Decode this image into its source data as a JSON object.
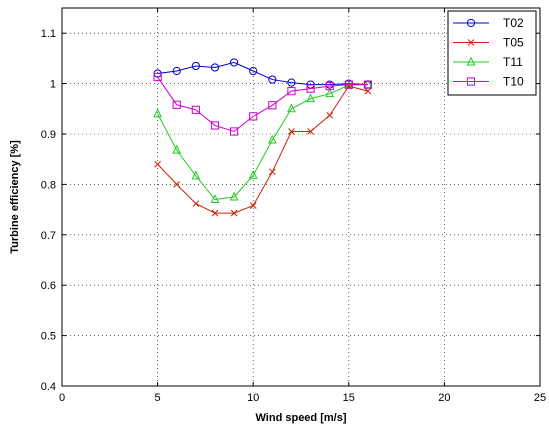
{
  "chart_data": {
    "type": "line",
    "title": "",
    "xlabel": "Wind speed  [m/s]",
    "ylabel": "Turbine efficiency  [%]",
    "xlim": [
      0,
      25
    ],
    "ylim": [
      0.4,
      1.15
    ],
    "xticks": [
      0,
      5,
      10,
      15,
      20,
      25
    ],
    "yticks": [
      0.4,
      0.5,
      0.6,
      0.7,
      0.8,
      0.9,
      1,
      1.1
    ],
    "xtick_labels": [
      "0",
      "5",
      "10",
      "15",
      "20",
      "25"
    ],
    "ytick_labels": [
      "0.4",
      "0.5",
      "0.6",
      "0.7",
      "0.8",
      "0.9",
      "1",
      "1.1"
    ],
    "grid": true,
    "legend_position": "top-right",
    "x": [
      5,
      6,
      7,
      8,
      9,
      10,
      11,
      12,
      13,
      14,
      15,
      16
    ],
    "series": [
      {
        "name": "T02",
        "color": "#0000cc",
        "marker": "circle",
        "values": [
          1.02,
          1.025,
          1.035,
          1.032,
          1.042,
          1.025,
          1.008,
          1.002,
          0.998,
          0.998,
          1.0,
          0.998
        ]
      },
      {
        "name": "T05",
        "color": "#cc2200",
        "marker": "x",
        "values": [
          0.84,
          0.8,
          0.762,
          0.743,
          0.743,
          0.758,
          0.825,
          0.905,
          0.905,
          0.937,
          0.995,
          0.985
        ]
      },
      {
        "name": "T11",
        "color": "#22cc22",
        "marker": "triangle",
        "values": [
          0.94,
          0.868,
          0.817,
          0.77,
          0.775,
          0.818,
          0.888,
          0.95,
          0.97,
          0.98,
          0.997,
          0.998
        ]
      },
      {
        "name": "T10",
        "color": "#cc00cc",
        "marker": "square",
        "values": [
          1.013,
          0.958,
          0.948,
          0.917,
          0.905,
          0.935,
          0.957,
          0.985,
          0.99,
          0.995,
          0.998,
          0.998
        ]
      }
    ]
  }
}
